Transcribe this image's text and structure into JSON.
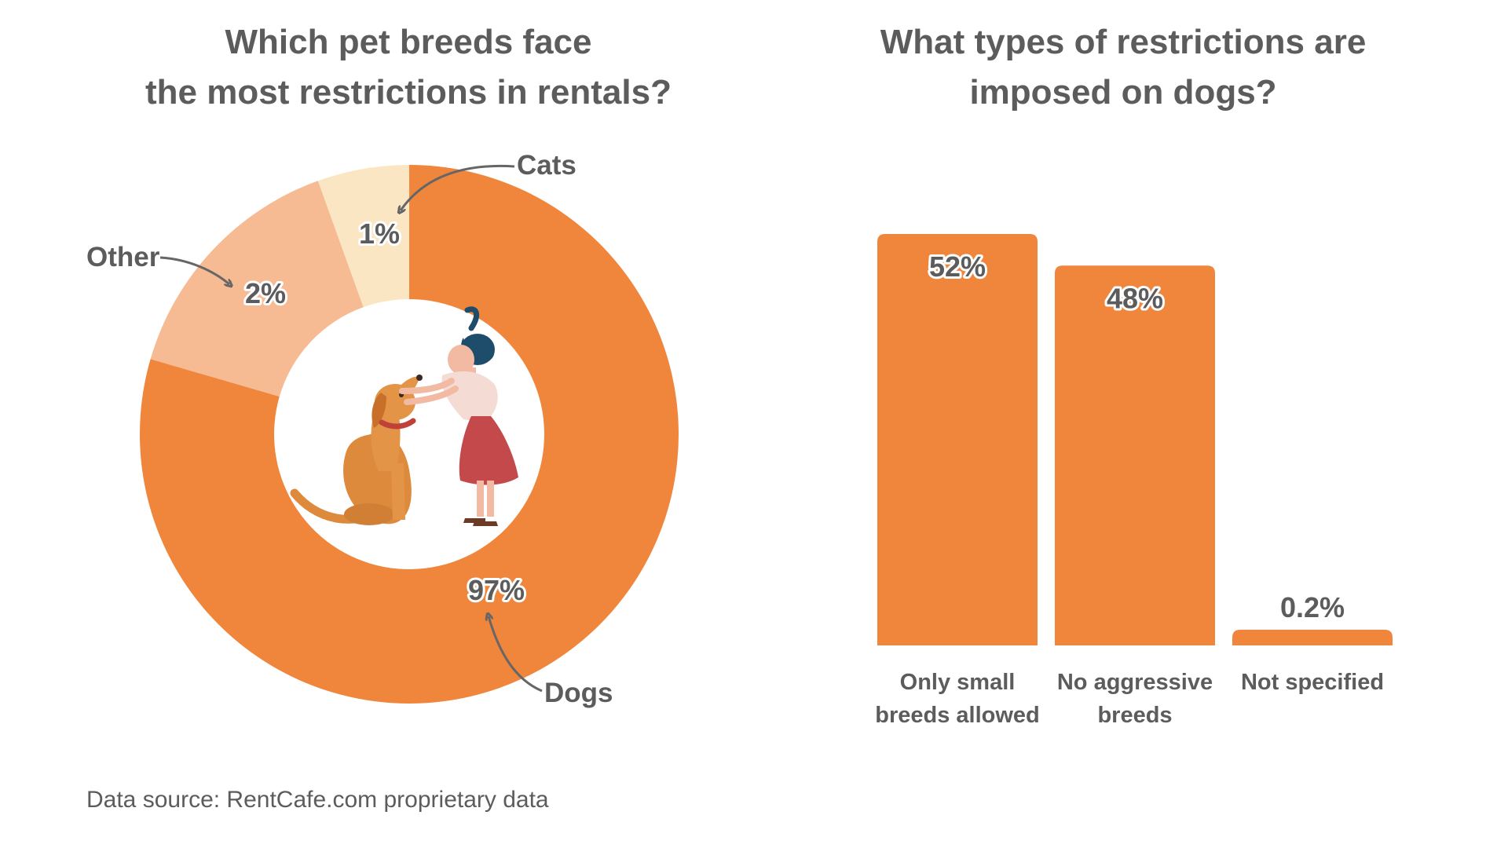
{
  "chart_data": [
    {
      "type": "pie",
      "title_lines": [
        "Which pet breeds face",
        "the most restrictions in rentals?"
      ],
      "slices": [
        {
          "label": "Dogs",
          "value_label": "97%",
          "value": 97,
          "color": "#f0853c"
        },
        {
          "label": "Other",
          "value_label": "2%",
          "value": 2,
          "color": "#f6bb92"
        },
        {
          "label": "Cats",
          "value_label": "1%",
          "value": 1,
          "color": "#fbe6c4"
        }
      ]
    },
    {
      "type": "bar",
      "title_lines": [
        "What types of restrictions are",
        "imposed on dogs?"
      ],
      "categories": [
        [
          "Only small",
          "breeds allowed"
        ],
        [
          "No aggressive",
          "breeds"
        ],
        [
          "Not specified"
        ]
      ],
      "values": [
        52,
        48,
        0.2
      ],
      "value_labels": [
        "52%",
        "48%",
        "0.2%"
      ],
      "color": "#f0853c"
    }
  ],
  "source": "Data source: RentCafe.com proprietary data",
  "illustration": "woman-petting-dog"
}
